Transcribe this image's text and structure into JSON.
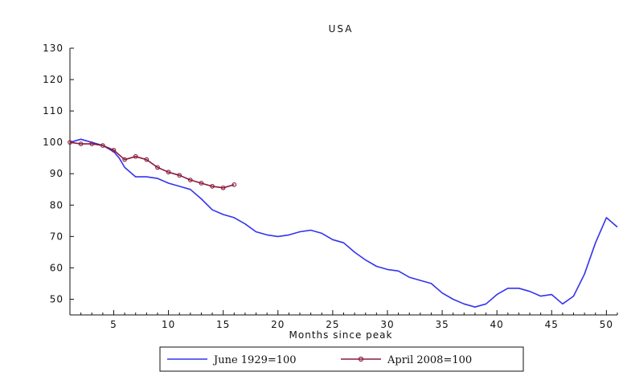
{
  "chart_data": {
    "type": "line",
    "title": "USA",
    "xlabel": "Months since peak",
    "ylabel": "",
    "xlim": [
      1,
      51
    ],
    "ylim": [
      45,
      130
    ],
    "xticks": [
      5,
      10,
      15,
      20,
      25,
      30,
      35,
      40,
      45,
      50
    ],
    "yticks": [
      50,
      60,
      70,
      80,
      90,
      100,
      110,
      120,
      130
    ],
    "grid": false,
    "legend": "bottom",
    "series": [
      {
        "name": "June 1929=100",
        "color": "#3333ee",
        "marker": "none",
        "x": [
          1,
          2,
          3,
          4,
          5,
          5.5,
          6,
          7,
          8,
          9,
          10,
          11,
          12,
          13,
          14,
          15,
          16,
          17,
          18,
          19,
          20,
          21,
          22,
          23,
          24,
          25,
          26,
          27,
          28,
          29,
          30,
          31,
          32,
          33,
          34,
          35,
          36,
          37,
          38,
          39,
          40,
          41,
          42,
          43,
          44,
          45,
          46,
          47,
          48,
          49,
          50,
          51
        ],
        "values": [
          100,
          101,
          100,
          99,
          97,
          95,
          92,
          89,
          89,
          88.5,
          87,
          86,
          85,
          82,
          78.5,
          77,
          76,
          74,
          71.5,
          70.5,
          70,
          70.5,
          71.5,
          72,
          71,
          69,
          68,
          65,
          62.5,
          60.5,
          59.5,
          59,
          57,
          56,
          55,
          52,
          50,
          48.5,
          47.5,
          48.5,
          51.5,
          53.5,
          53.5,
          52.5,
          51,
          51.5,
          48.5,
          51,
          58,
          68,
          76,
          73
        ]
      },
      {
        "name": "April 2008=100",
        "color": "#8a1a3a",
        "marker": "circle",
        "x": [
          1,
          2,
          3,
          4,
          5,
          6,
          7,
          8,
          9,
          10,
          11,
          12,
          13,
          14,
          15,
          16
        ],
        "values": [
          100,
          99.5,
          99.5,
          99,
          97.5,
          94.5,
          95.5,
          94.5,
          92,
          90.5,
          89.5,
          88,
          87,
          86,
          85.5,
          86.5
        ]
      }
    ]
  }
}
